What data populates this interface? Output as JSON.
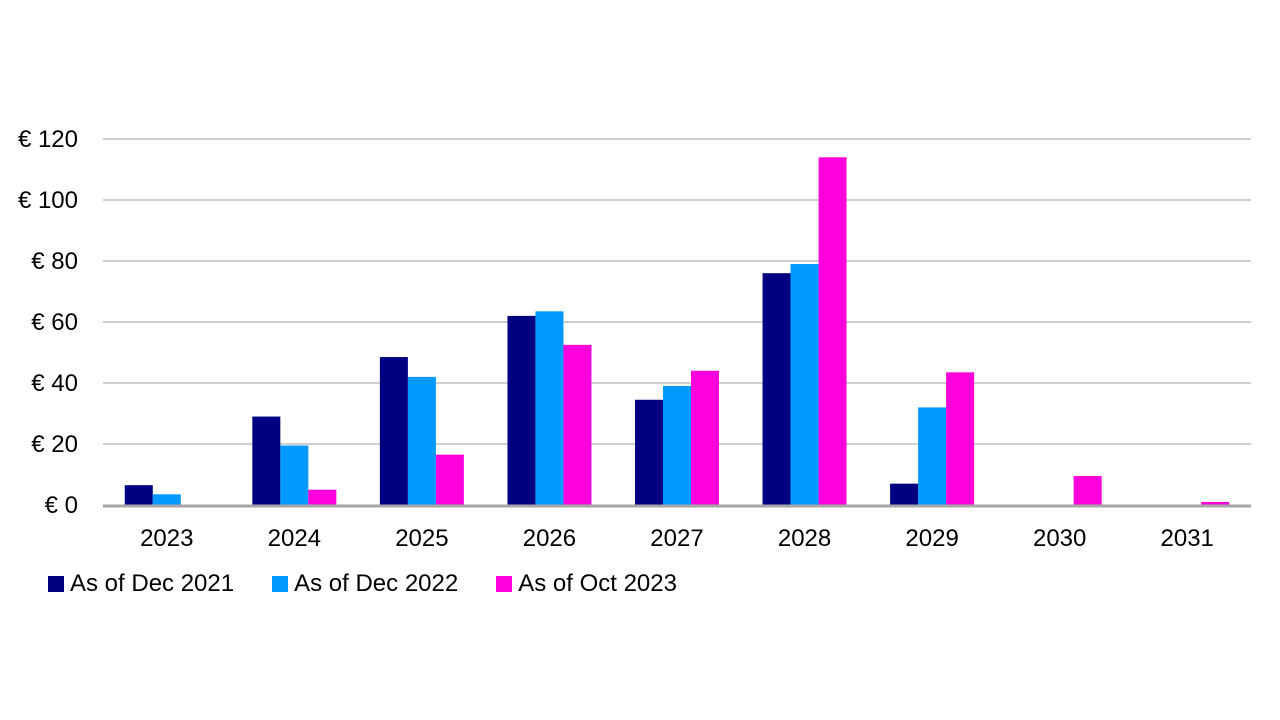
{
  "chart_data": {
    "type": "bar",
    "categories": [
      "2023",
      "2024",
      "2025",
      "2026",
      "2027",
      "2028",
      "2029",
      "2030",
      "2031"
    ],
    "series": [
      {
        "name": "As of Dec 2021",
        "color": "#000080",
        "values": [
          6.5,
          29,
          48.5,
          62,
          34.5,
          76,
          7,
          0,
          0
        ]
      },
      {
        "name": "As of Dec 2022",
        "color": "#0099FF",
        "values": [
          3.5,
          19.5,
          42,
          63.5,
          39,
          79,
          32,
          0,
          0
        ]
      },
      {
        "name": "As of Oct 2023",
        "color": "#FF00DD",
        "values": [
          0,
          5,
          16.5,
          52.5,
          44,
          114,
          43.5,
          9.5,
          1
        ]
      }
    ],
    "yticks": [
      "€ 0",
      "€ 20",
      "€ 40",
      "€ 60",
      "€ 80",
      "€ 100",
      "€ 120"
    ],
    "ylim": [
      0,
      120
    ],
    "grid": true,
    "legend": "bottom-left",
    "title": "",
    "xlabel": "",
    "ylabel": ""
  }
}
